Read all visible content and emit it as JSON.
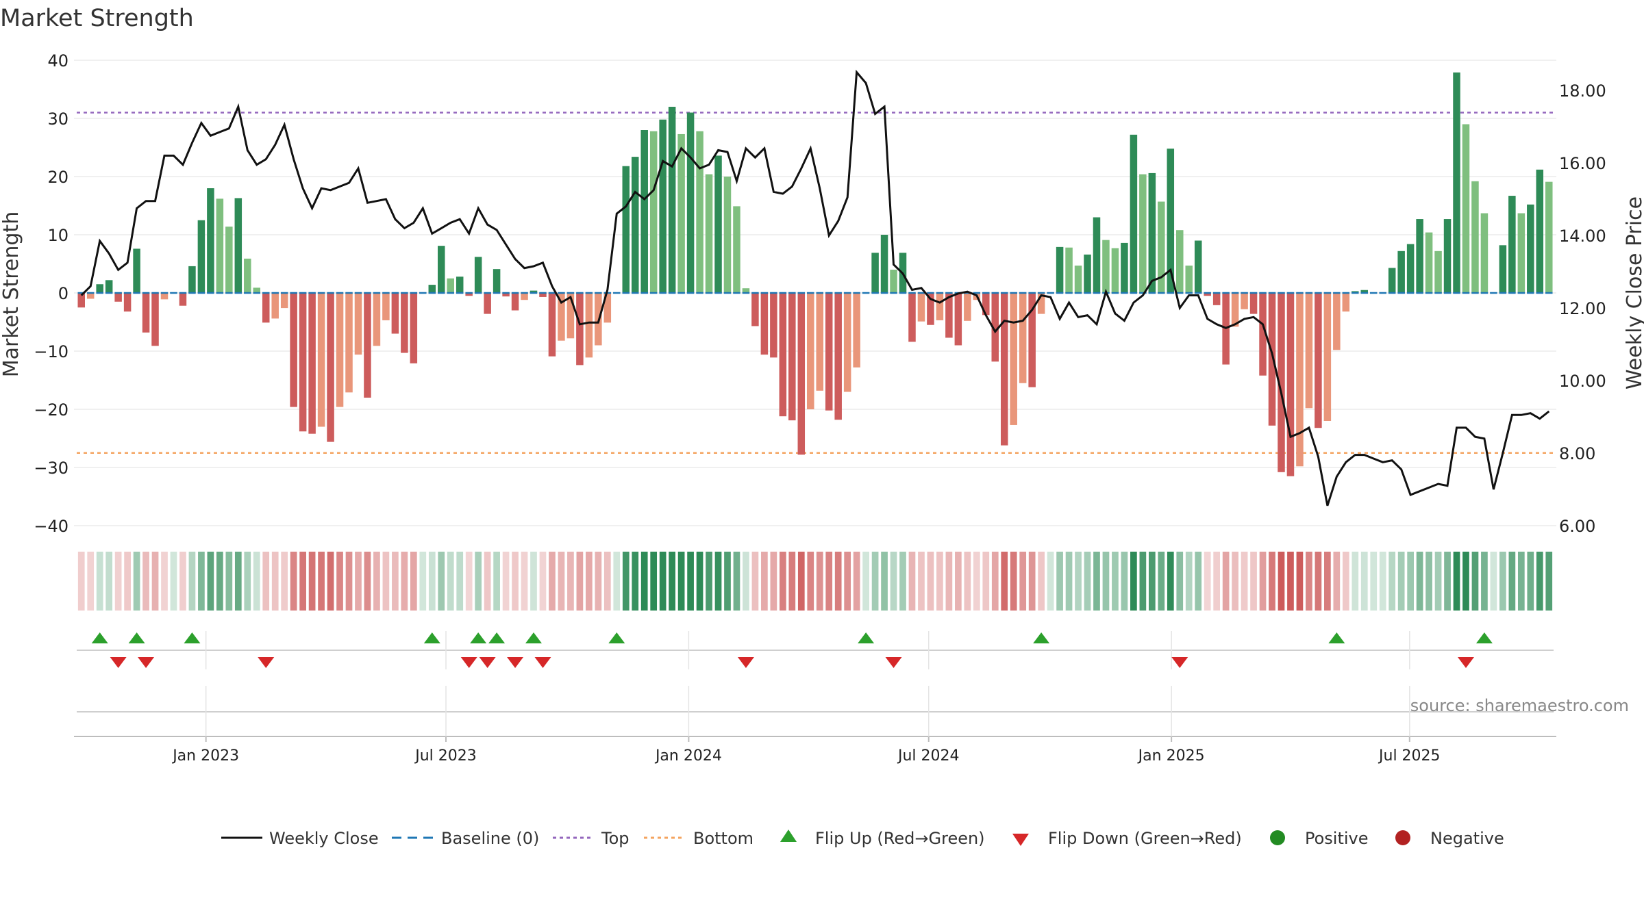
{
  "chart_data": {
    "type": "bar",
    "title": "Market Strength",
    "ylabel": "Market Strength",
    "y2label": "Weekly Close Price",
    "ylim": [
      -40,
      40
    ],
    "y2lim": [
      6.0,
      18.0
    ],
    "yticks": [
      40,
      30,
      20,
      10,
      0,
      -10,
      -20,
      -30,
      -40
    ],
    "yticks_text": [
      "40",
      "30",
      "20",
      "10",
      "0",
      "−10",
      "−20",
      "−30",
      "−40"
    ],
    "y2ticks": [
      6,
      8,
      10,
      12,
      14,
      16,
      18
    ],
    "y2ticks_text": [
      "6.00",
      "8.00",
      "10.00",
      "12.00",
      "14.00",
      "16.00",
      "18.00"
    ],
    "xticks": [
      {
        "label": "Jan 2023",
        "week": 14
      },
      {
        "label": "Jul 2023",
        "week": 40
      },
      {
        "label": "Jan 2024",
        "week": 66.3
      },
      {
        "label": "Jul 2024",
        "week": 92.3
      },
      {
        "label": "Jan 2025",
        "week": 118.6
      },
      {
        "label": "Jul 2025",
        "week": 144.4
      }
    ],
    "top_line": 31,
    "bottom_line": -27.5,
    "strength": [
      -2.5,
      -1,
      1.5,
      2.2,
      -1.5,
      -3.2,
      7.6,
      -6.8,
      -9.1,
      -1.1,
      0,
      -2.2,
      4.6,
      12.5,
      18,
      16.2,
      11.4,
      16.3,
      5.9,
      0.9,
      -5.1,
      -4.4,
      -2.6,
      -19.6,
      -23.8,
      -24.2,
      -23,
      -25.6,
      -19.6,
      -17.1,
      -10.6,
      -18,
      -9.1,
      -4.7,
      -7,
      -10.3,
      -12.1,
      0,
      1.4,
      8.1,
      2.5,
      2.8,
      -0.5,
      6.2,
      -3.6,
      4.1,
      -0.6,
      -3,
      -1.2,
      0.4,
      -0.7,
      -10.9,
      -8.2,
      -7.8,
      -12.4,
      -11.1,
      -9,
      -5.1,
      0,
      21.8,
      23.4,
      28,
      27.8,
      29.8,
      32,
      27.3,
      31,
      27.8,
      20.4,
      23.6,
      20,
      14.9,
      0.8,
      -5.7,
      -10.6,
      -11.1,
      -21.2,
      -21.9,
      -27.8,
      -20,
      -16.8,
      -20.2,
      -21.8,
      -17,
      -12.8,
      0,
      6.9,
      10,
      4,
      6.9,
      -8.4,
      -4.9,
      -5.5,
      -4.7,
      -7.7,
      -9,
      -4.8,
      -1.2,
      -3.8,
      -11.8,
      -26.2,
      -22.7,
      -15.5,
      -16.2,
      -3.6,
      0,
      7.9,
      7.8,
      4.7,
      6.6,
      13,
      9.1,
      7.7,
      8.6,
      27.2,
      20.4,
      20.6,
      15.7,
      24.8,
      10.8,
      4.7,
      9,
      -0.5,
      -2.1,
      -12.3,
      -5.8,
      -2.8,
      -3.6,
      -14.2,
      -22.8,
      -30.8,
      -31.5,
      -29.8,
      -19.8,
      -23.2,
      -22,
      -9.8,
      -3.2,
      0.3,
      0.5,
      0,
      0,
      4.3,
      7.2,
      8.4,
      12.7,
      10.4,
      7.2,
      12.7,
      37.9,
      29,
      19.2,
      13.7,
      0,
      8.2,
      16.7,
      13.7,
      15.2,
      21.2,
      19.1
    ],
    "close": [
      12.35,
      12.6,
      13.85,
      13.5,
      13.05,
      13.25,
      14.75,
      14.95,
      14.95,
      16.2,
      16.2,
      15.95,
      16.55,
      17.1,
      16.75,
      16.85,
      16.95,
      17.55,
      16.35,
      15.95,
      16.1,
      16.5,
      17.05,
      16.1,
      15.3,
      14.75,
      15.3,
      15.25,
      15.35,
      15.45,
      15.85,
      14.9,
      14.95,
      15.0,
      14.45,
      14.2,
      14.35,
      14.75,
      14.05,
      14.2,
      14.35,
      14.45,
      14.05,
      14.75,
      14.3,
      14.15,
      13.75,
      13.35,
      13.1,
      13.15,
      13.25,
      12.6,
      12.15,
      12.3,
      11.55,
      11.6,
      11.6,
      12.5,
      14.6,
      14.8,
      15.2,
      15.0,
      15.25,
      16.05,
      15.9,
      16.4,
      16.15,
      15.85,
      15.95,
      16.35,
      16.3,
      15.5,
      16.4,
      16.15,
      16.4,
      15.2,
      15.15,
      15.35,
      15.85,
      16.4,
      15.3,
      14.0,
      14.4,
      15.05,
      18.5,
      18.2,
      17.35,
      17.55,
      13.2,
      12.95,
      12.5,
      12.55,
      12.25,
      12.15,
      12.3,
      12.4,
      12.45,
      12.35,
      11.8,
      11.35,
      11.65,
      11.6,
      11.65,
      11.95,
      12.35,
      12.3,
      11.7,
      12.15,
      11.75,
      11.8,
      11.55,
      12.45,
      11.85,
      11.65,
      12.15,
      12.35,
      12.75,
      12.85,
      13.05,
      12.0,
      12.35,
      12.35,
      11.7,
      11.55,
      11.45,
      11.55,
      11.7,
      11.75,
      11.55,
      10.75,
      9.65,
      8.45,
      8.55,
      8.7,
      7.9,
      6.55,
      7.35,
      7.75,
      7.95,
      7.95,
      7.85,
      7.75,
      7.8,
      7.55,
      6.85,
      6.95,
      7.05,
      7.15,
      7.1,
      8.7,
      8.7,
      8.45,
      8.4,
      7.0,
      8.0,
      9.05,
      9.05,
      9.1,
      8.95,
      9.15
    ],
    "flips_up": [
      2,
      6,
      12,
      38,
      43,
      45,
      49,
      58,
      85,
      104,
      136,
      152
    ],
    "flips_down": [
      4,
      7,
      20,
      42,
      44,
      47,
      50,
      72,
      88,
      119,
      150
    ],
    "regime_legend": {
      "positive": "Positive",
      "negative": "Negative"
    }
  },
  "legend": {
    "weekly_close": "Weekly Close",
    "baseline": "Baseline (0)",
    "top": "Top",
    "bottom": "Bottom",
    "flip_up": "Flip Up (Red→Green)",
    "flip_down": "Flip Down (Green→Red)",
    "positive": "Positive",
    "negative": "Negative"
  },
  "source": "source: sharemaestro.com",
  "colors": {
    "pos_strong": "#2e8b57",
    "pos_light": "#7fbf7f",
    "neg_strong": "#cd5c5c",
    "neg_light": "#e9967a",
    "close_line": "#111111",
    "baseline": "#1f77b4",
    "top": "#9467bd",
    "bottom": "#f4a460",
    "flip_up": "#2ca02c",
    "flip_down": "#d62728",
    "positive": "#228b22",
    "negative": "#b22222"
  }
}
